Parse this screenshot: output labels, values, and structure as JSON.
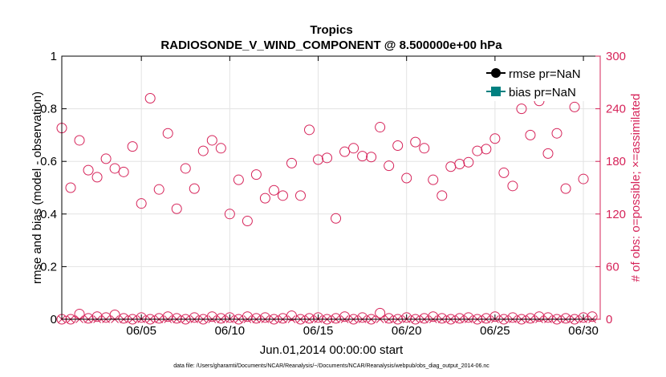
{
  "chart_data": {
    "type": "scatter",
    "title": "Tropics",
    "subtitle": "RADIOSONDE_V_WIND_COMPONENT @ 8.500000e+00 hPa",
    "xlabel": "Jun.01,2014 00:00:00 start",
    "ylabel_left": "rmse and bias (model - observation)",
    "ylabel_right": "# of obs: o=possible; ×=assimilated",
    "xlim": [
      0.5,
      30.95
    ],
    "ylim_left": [
      0,
      1
    ],
    "ylim_right": [
      0,
      300
    ],
    "x_ticks": [
      5,
      10,
      15,
      20,
      25,
      30
    ],
    "x_tick_labels": [
      "06/05",
      "06/10",
      "06/15",
      "06/20",
      "06/25",
      "06/30"
    ],
    "y_left_ticks": [
      0,
      0.2,
      0.4,
      0.6,
      0.8,
      1
    ],
    "y_left_tick_labels": [
      "0",
      "0.2",
      "0.4",
      "0.6",
      "0.8",
      "1"
    ],
    "y_right_ticks": [
      0,
      60,
      120,
      180,
      240,
      300
    ],
    "y_right_tick_labels": [
      "0",
      "60",
      "120",
      "180",
      "240",
      "300"
    ],
    "grid": true,
    "legend": {
      "placement": "top-right",
      "entries": [
        {
          "label": "rmse pr=NaN",
          "color": "#000000",
          "marker": "circle-filled"
        },
        {
          "label": "bias pr=NaN",
          "color": "#008080",
          "marker": "square-filled"
        }
      ]
    },
    "colors": {
      "right_axis": "#d6245a",
      "axis": "#000000",
      "grid": "#e3e3e3"
    },
    "series": [
      {
        "name": "obs possible (upper)",
        "axis": "right",
        "marker": "circle",
        "x": [
          0.5,
          1.0,
          1.5,
          2.0,
          2.5,
          3.0,
          3.5,
          4.0,
          4.5,
          5.0,
          5.5,
          6.0,
          6.5,
          7.0,
          7.5,
          8.0,
          8.5,
          9.0,
          9.5,
          10.0,
          10.5,
          11.0,
          11.5,
          12.0,
          12.5,
          13.0,
          13.5,
          14.0,
          14.5,
          15.0,
          15.5,
          16.0,
          16.5,
          17.0,
          17.5,
          18.0,
          18.5,
          19.0,
          19.5,
          20.0,
          20.5,
          21.0,
          21.5,
          22.0,
          22.5,
          23.0,
          23.5,
          24.0,
          24.5,
          25.0,
          25.5,
          26.0,
          26.5,
          27.0,
          27.5,
          28.0,
          28.5,
          29.0,
          29.5,
          30.0,
          30.5
        ],
        "values": [
          218,
          150,
          204,
          170,
          162,
          183,
          172,
          168,
          197,
          132,
          252,
          148,
          212,
          126,
          172,
          149,
          192,
          204,
          195,
          120,
          159,
          112,
          165,
          138,
          147,
          141,
          178,
          141,
          216,
          182,
          184,
          115,
          191,
          195,
          186,
          185,
          219,
          175,
          198,
          161,
          202,
          195,
          159,
          141,
          174,
          177,
          179,
          192,
          194,
          206,
          167,
          152,
          240,
          210,
          249,
          189,
          212,
          149,
          242,
          160,
          null
        ]
      },
      {
        "name": "obs possible (lower)",
        "axis": "right",
        "marker": "circle",
        "x": [
          0.5,
          1.0,
          1.5,
          2.0,
          2.5,
          3.0,
          3.5,
          4.0,
          4.5,
          5.0,
          5.5,
          6.0,
          6.5,
          7.0,
          7.5,
          8.0,
          8.5,
          9.0,
          9.5,
          10.0,
          10.5,
          11.0,
          11.5,
          12.0,
          12.5,
          13.0,
          13.5,
          14.0,
          14.5,
          15.0,
          15.5,
          16.0,
          16.5,
          17.0,
          17.5,
          18.0,
          18.5,
          19.0,
          19.5,
          20.0,
          20.5,
          21.0,
          21.5,
          22.0,
          22.5,
          23.0,
          23.5,
          24.0,
          24.5,
          25.0,
          25.5,
          26.0,
          26.5,
          27.0,
          27.5,
          28.0,
          28.5,
          29.0,
          29.5,
          30.0,
          30.5
        ],
        "values": [
          0,
          0,
          6,
          1,
          3,
          2,
          5,
          1,
          0,
          2,
          0,
          1,
          3,
          1,
          0,
          2,
          0,
          3,
          1,
          2,
          0,
          3,
          1,
          2,
          0,
          1,
          4,
          0,
          1,
          2,
          0,
          1,
          3,
          0,
          2,
          0,
          7,
          1,
          0,
          2,
          0,
          1,
          3,
          1,
          0,
          1,
          2,
          0,
          1,
          3,
          0,
          2,
          0,
          1,
          3,
          2,
          0,
          1,
          0,
          2,
          3
        ]
      },
      {
        "name": "obs assimilated",
        "axis": "right",
        "marker": "x",
        "x": [
          0.5,
          1.0,
          1.5,
          2.0,
          2.5,
          3.0,
          3.5,
          4.0,
          4.5,
          5.0,
          5.5,
          6.0,
          6.5,
          7.0,
          7.5,
          8.0,
          8.5,
          9.0,
          9.5,
          10.0,
          10.5,
          11.0,
          11.5,
          12.0,
          12.5,
          13.0,
          13.5,
          14.0,
          14.5,
          15.0,
          15.5,
          16.0,
          16.5,
          17.0,
          17.5,
          18.0,
          18.5,
          19.0,
          19.5,
          20.0,
          20.5,
          21.0,
          21.5,
          22.0,
          22.5,
          23.0,
          23.5,
          24.0,
          24.5,
          25.0,
          25.5,
          26.0,
          26.5,
          27.0,
          27.5,
          28.0,
          28.5,
          29.0,
          29.5,
          30.0,
          30.5
        ],
        "values": [
          0,
          0,
          0,
          0,
          0,
          0,
          0,
          0,
          0,
          0,
          0,
          0,
          0,
          0,
          0,
          0,
          0,
          0,
          0,
          0,
          0,
          0,
          0,
          0,
          0,
          0,
          0,
          0,
          0,
          0,
          0,
          0,
          0,
          0,
          0,
          0,
          0,
          0,
          0,
          0,
          0,
          0,
          0,
          0,
          0,
          0,
          0,
          0,
          0,
          0,
          0,
          0,
          0,
          0,
          0,
          0,
          0,
          0,
          0,
          0,
          0
        ]
      }
    ]
  },
  "footer": "data file: /Users/gharamti/Documents/NCAR/Reanalysis/~/Documents/NCAR/Reanalysis/webpub/obs_diag_output_2014-06.nc"
}
